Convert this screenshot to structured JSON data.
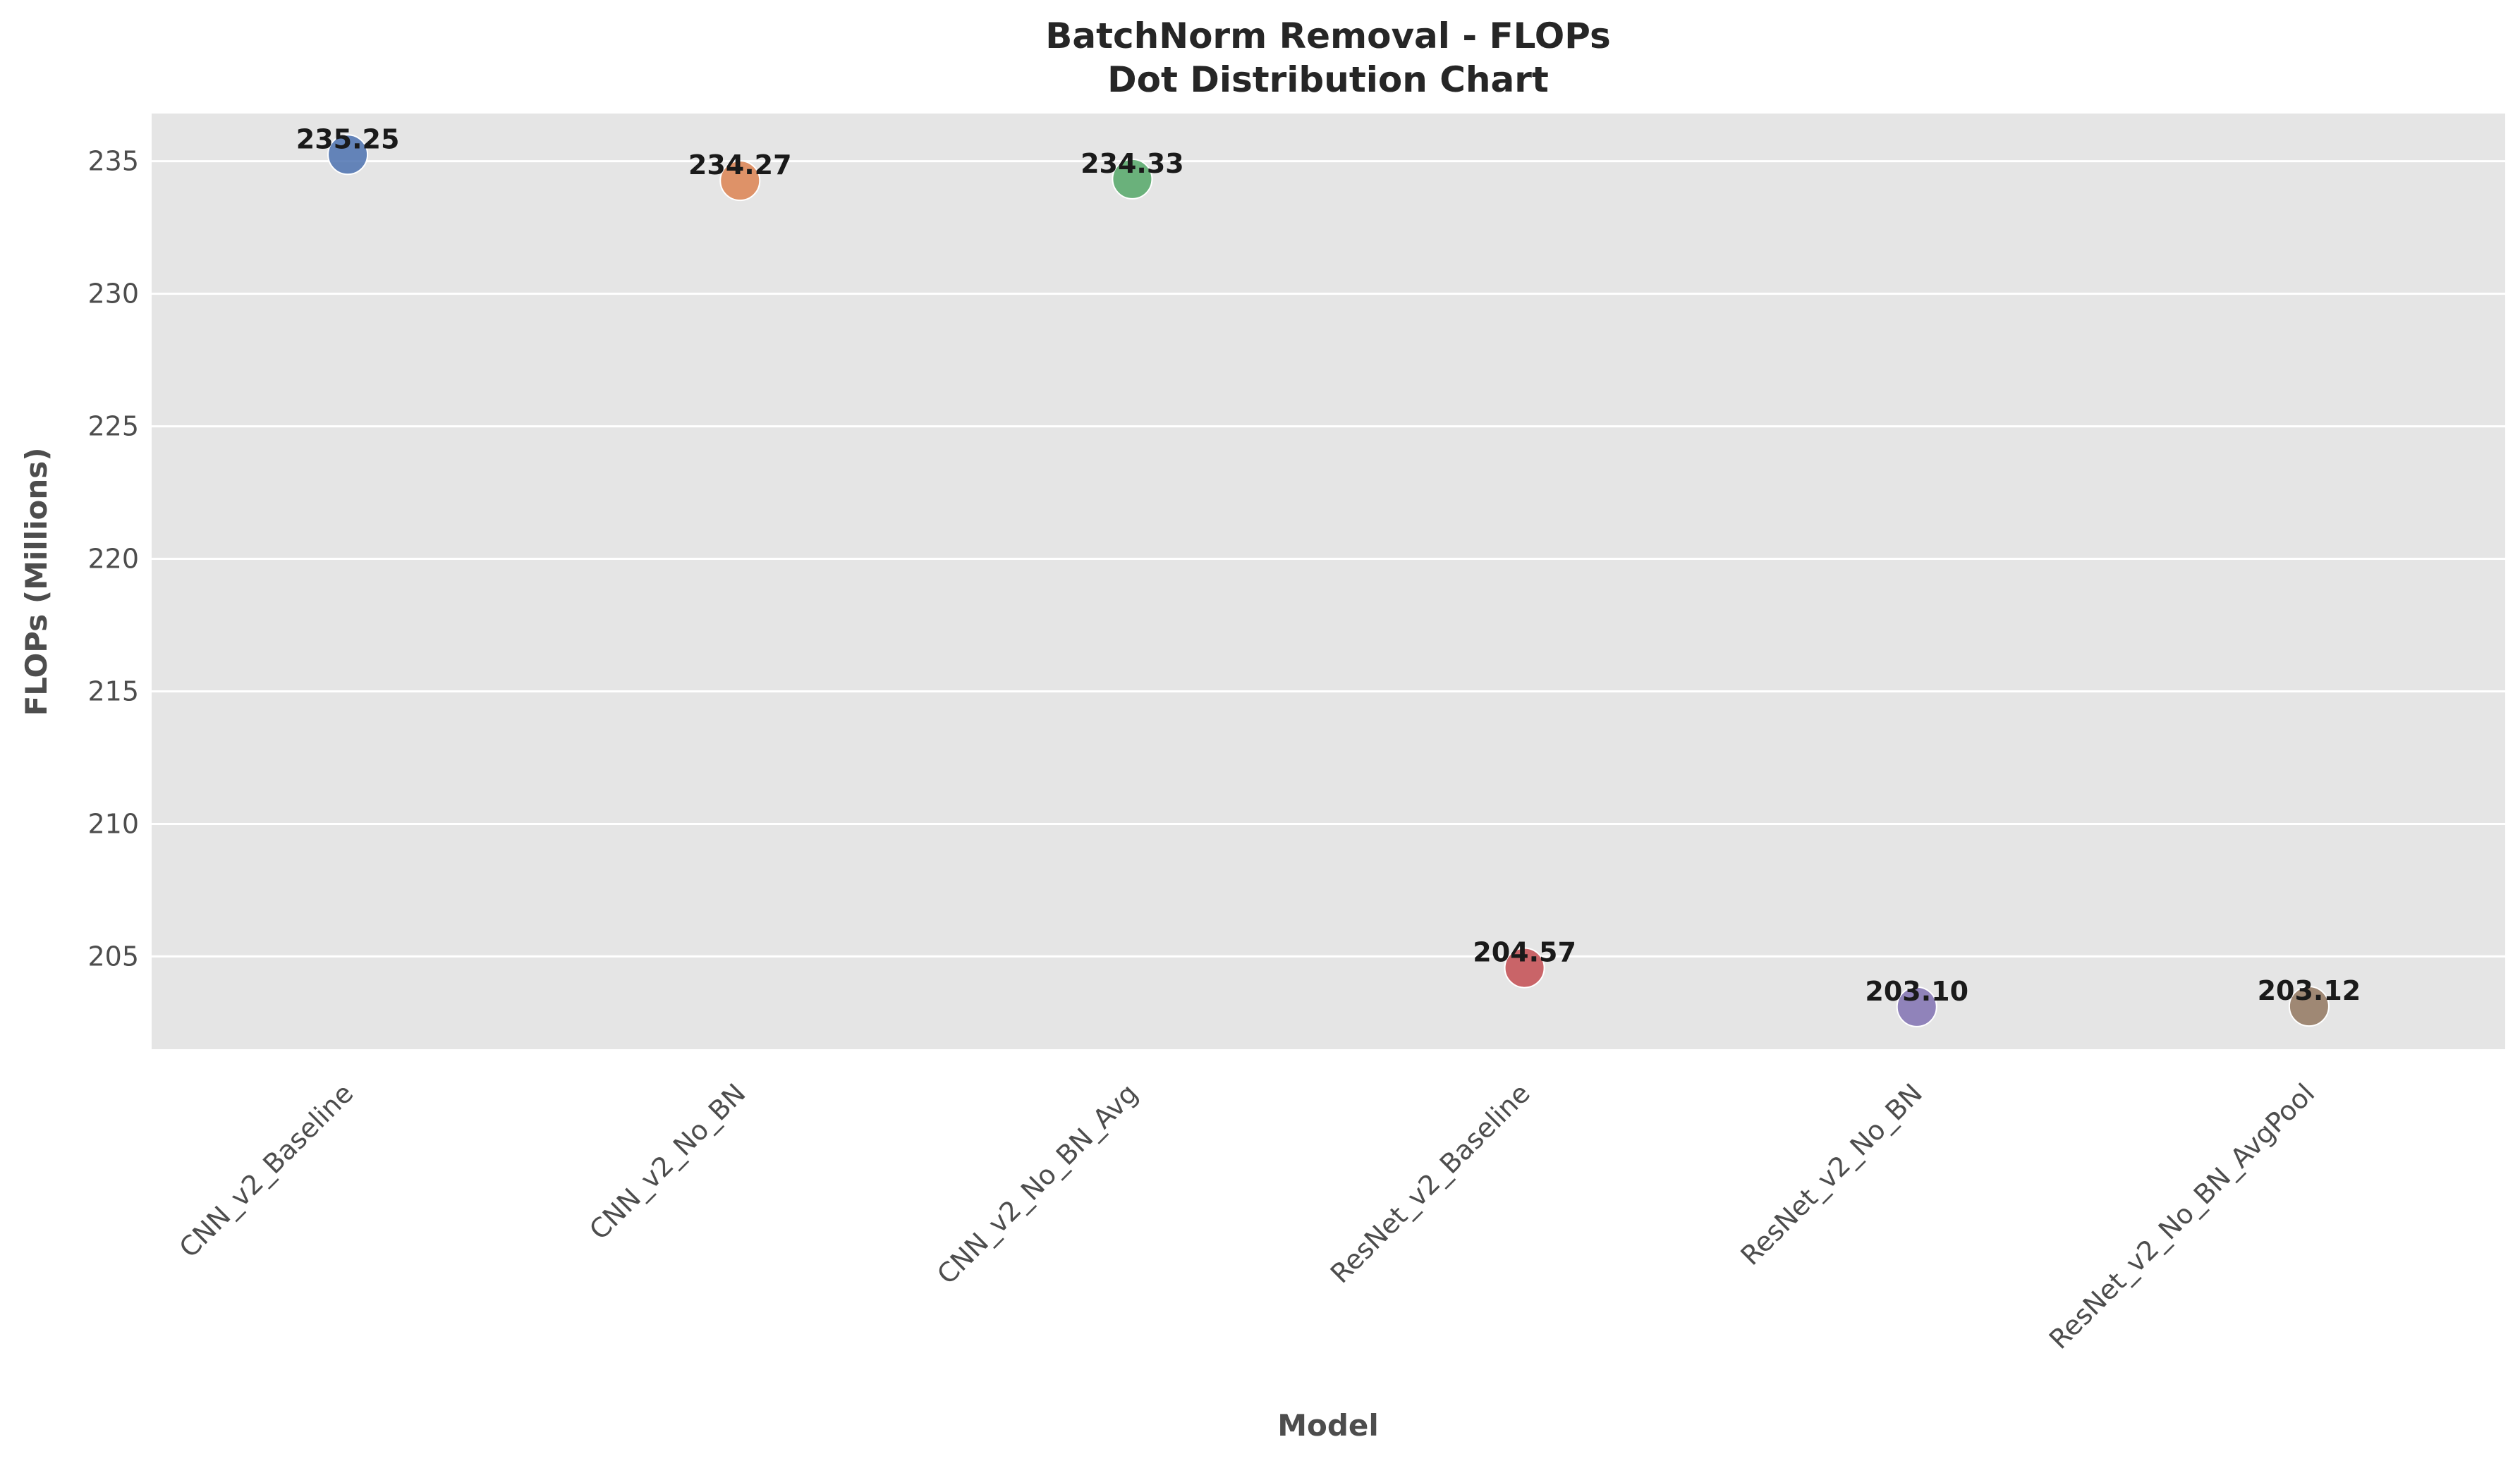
{
  "chart_data": {
    "type": "scatter",
    "title": "BatchNorm Removal - FLOPs",
    "subtitle": "Dot Distribution Chart",
    "xlabel": "Model",
    "ylabel": "FLOPs (Millions)",
    "categories": [
      "CNN_v2_Baseline",
      "CNN_v2_No_BN",
      "CNN_v2_No_BN_Avg",
      "ResNet_v2_Baseline",
      "ResNet_v2_No_BN",
      "ResNet_v2_No_BN_AvgPool"
    ],
    "values": [
      235.25,
      234.27,
      234.33,
      204.57,
      203.1,
      203.12
    ],
    "data_labels": [
      "235.25",
      "234.27",
      "234.33",
      "204.57",
      "203.10",
      "203.12"
    ],
    "colors": [
      "#4c72b0",
      "#dd8452",
      "#55a868",
      "#c44e52",
      "#8172b3",
      "#937860"
    ],
    "ylim": [
      201.5,
      236.8
    ],
    "yticks": [
      205,
      210,
      215,
      220,
      225,
      230,
      235
    ],
    "grid": true,
    "plot_background": "#e5e5e5",
    "grid_color": "#ffffff"
  }
}
